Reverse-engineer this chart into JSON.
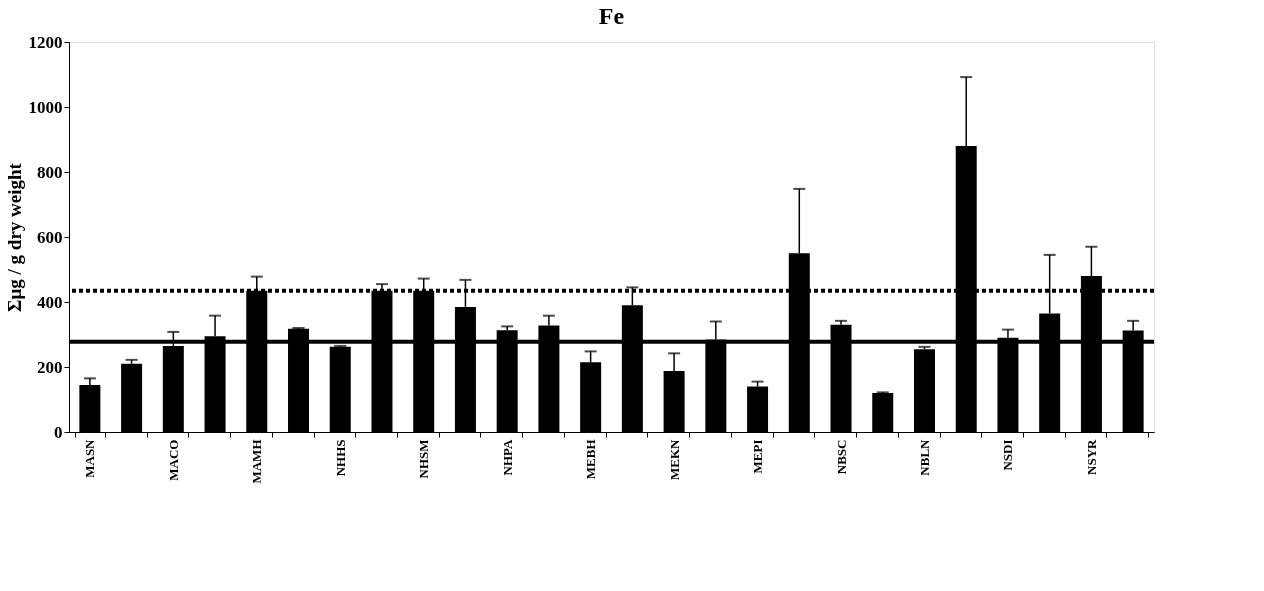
{
  "chart_data": {
    "type": "bar",
    "title": "Fe",
    "ylabel": "Σμg / g dry weight",
    "categories": [
      "MASN",
      null,
      "MACO",
      null,
      "MAMH",
      null,
      "NHHS",
      null,
      "NHSM",
      null,
      "NHPA",
      null,
      "MEBH",
      null,
      "MEKN",
      null,
      "MEPI",
      null,
      "NBSC",
      null,
      "NBLN",
      null,
      "NSDI",
      null,
      "NSYR",
      null
    ],
    "values": [
      145,
      210,
      265,
      295,
      435,
      318,
      262,
      435,
      435,
      385,
      313,
      328,
      215,
      390,
      188,
      285,
      140,
      550,
      330,
      120,
      255,
      880,
      290,
      365,
      480,
      312
    ],
    "errors": [
      [
        145,
        165
      ],
      [
        210,
        222
      ],
      [
        265,
        308
      ],
      [
        295,
        358
      ],
      [
        435,
        478
      ],
      [
        318,
        320
      ],
      [
        262,
        265
      ],
      [
        435,
        455
      ],
      [
        435,
        472
      ],
      [
        385,
        468
      ],
      [
        313,
        325
      ],
      [
        328,
        358
      ],
      [
        215,
        248
      ],
      [
        390,
        445
      ],
      [
        188,
        242
      ],
      [
        285,
        340
      ],
      [
        140,
        155
      ],
      [
        550,
        748
      ],
      [
        330,
        342
      ],
      [
        120,
        122
      ],
      [
        255,
        262
      ],
      [
        880,
        1092
      ],
      [
        290,
        315
      ],
      [
        365,
        545
      ],
      [
        480,
        570
      ],
      [
        312,
        342
      ]
    ],
    "color": "#000000",
    "ylim": [
      0,
      1200
    ],
    "yticks": [
      0,
      200,
      400,
      600,
      800,
      1000,
      1200
    ],
    "ref_lines": [
      {
        "axis": "y",
        "value": 278,
        "line_style": "solid",
        "color": "#000000"
      },
      {
        "axis": "y",
        "value": 435,
        "line_style": "dotted",
        "color": "#000000"
      }
    ],
    "grid": false
  }
}
